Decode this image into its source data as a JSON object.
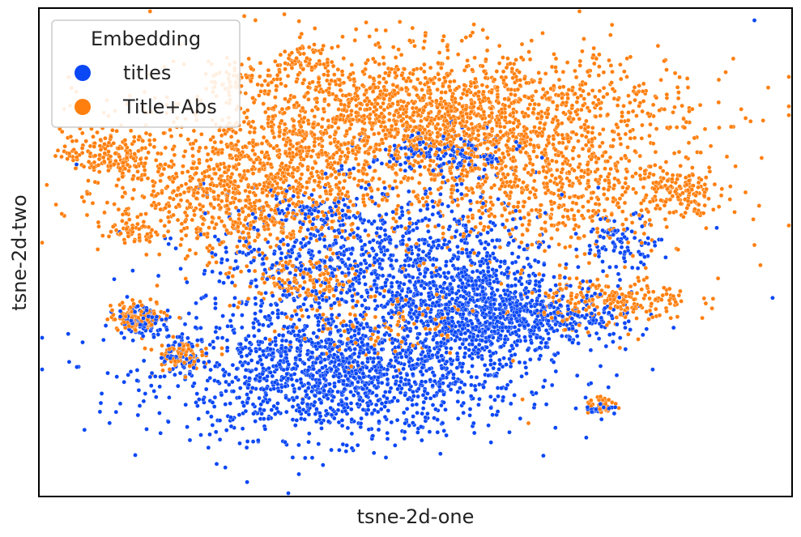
{
  "chart_data": {
    "type": "scatter",
    "xlabel": "tsne-2d-one",
    "ylabel": "tsne-2d-two",
    "xticks": [],
    "yticks": [],
    "grid": false,
    "legend": {
      "title": "Embedding",
      "placement": "top-left"
    },
    "xlim": [
      -100,
      100
    ],
    "ylim": [
      -100,
      100
    ],
    "series": [
      {
        "name": "titles",
        "color": "#0a47f5",
        "clusters": [
          {
            "cx": -20,
            "cy": -50,
            "sx": 24,
            "sy": 13,
            "n": 1500
          },
          {
            "cx": 18,
            "cy": -25,
            "sx": 11,
            "sy": 10,
            "n": 700
          },
          {
            "cx": -8,
            "cy": -5,
            "sx": 24,
            "sy": 15,
            "n": 1100
          },
          {
            "cx": 8,
            "cy": 40,
            "sx": 10,
            "sy": 5,
            "n": 160
          },
          {
            "cx": 42,
            "cy": -28,
            "sx": 8,
            "sy": 5,
            "n": 130
          },
          {
            "cx": 55,
            "cy": 5,
            "sx": 5,
            "sy": 5,
            "n": 80
          },
          {
            "cx": -72,
            "cy": -28,
            "sx": 4,
            "sy": 3,
            "n": 80
          },
          {
            "cx": -62,
            "cy": -42,
            "sx": 3,
            "sy": 3,
            "n": 50
          },
          {
            "cx": -30,
            "cy": 18,
            "sx": 5,
            "sy": 3,
            "n": 50
          },
          {
            "cx": 49,
            "cy": -64,
            "sx": 2,
            "sy": 1.5,
            "n": 30
          }
        ],
        "outliers": [
          [
            90,
            95
          ],
          [
            80,
            10
          ],
          [
            63,
            -48
          ],
          [
            -90,
            36
          ],
          [
            -80,
            -11
          ],
          [
            -55,
            -80
          ]
        ]
      },
      {
        "name": "Title+Abs",
        "color": "#ff7f0e",
        "clusters": [
          {
            "cx": 5,
            "cy": 55,
            "sx": 32,
            "sy": 14,
            "n": 2000
          },
          {
            "cx": -45,
            "cy": 25,
            "sx": 18,
            "sy": 14,
            "n": 1000
          },
          {
            "cx": 35,
            "cy": 25,
            "sx": 20,
            "sy": 14,
            "n": 600
          },
          {
            "cx": -82,
            "cy": 40,
            "sx": 6,
            "sy": 5,
            "n": 160
          },
          {
            "cx": -73,
            "cy": -26,
            "sx": 4,
            "sy": 3,
            "n": 110
          },
          {
            "cx": -63,
            "cy": -42,
            "sx": 3,
            "sy": 3,
            "n": 80
          },
          {
            "cx": 53,
            "cy": -20,
            "sx": 10,
            "sy": 5,
            "n": 220
          },
          {
            "cx": 50,
            "cy": -63,
            "sx": 2.5,
            "sy": 1.5,
            "n": 30
          },
          {
            "cx": -75,
            "cy": 8,
            "sx": 3,
            "sy": 3,
            "n": 40
          },
          {
            "cx": 70,
            "cy": 25,
            "sx": 6,
            "sy": 5,
            "n": 110
          },
          {
            "cx": -48,
            "cy": 72,
            "sx": 4,
            "sy": 3,
            "n": 50
          },
          {
            "cx": -30,
            "cy": 78,
            "sx": 4,
            "sy": 3,
            "n": 50
          },
          {
            "cx": -30,
            "cy": -12,
            "sx": 8,
            "sy": 5,
            "n": 120
          },
          {
            "cx": -10,
            "cy": -30,
            "sx": 15,
            "sy": 10,
            "n": 150
          }
        ],
        "outliers": [
          [
            79,
            -19
          ],
          [
            61,
            65
          ],
          [
            90,
            3
          ],
          [
            -70,
            -50
          ],
          [
            -30,
            -60
          ],
          [
            30,
            -70
          ]
        ]
      }
    ]
  }
}
